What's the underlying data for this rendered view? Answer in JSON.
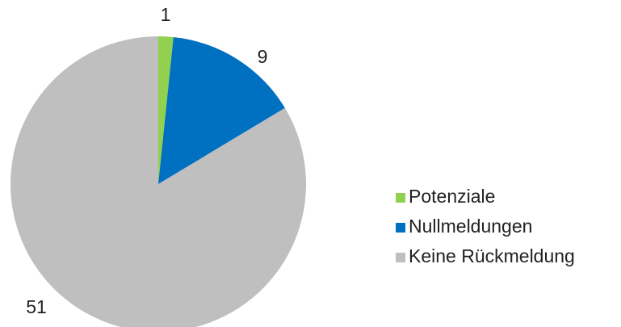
{
  "chart_data": {
    "type": "pie",
    "categories": [
      "Potenziale",
      "Nullmeldungen",
      "Keine Rückmeldung"
    ],
    "values": [
      1,
      9,
      51
    ],
    "colors": [
      "#92d050",
      "#0070c0",
      "#bfbfbf"
    ],
    "legend": "right"
  }
}
